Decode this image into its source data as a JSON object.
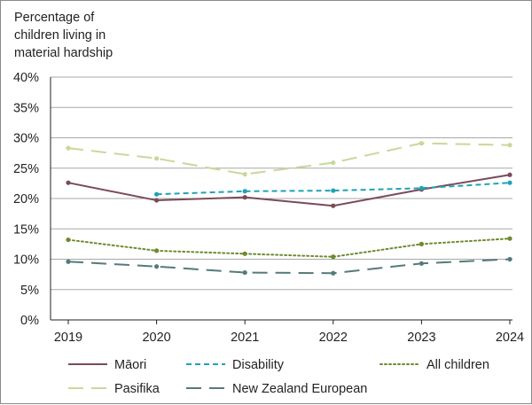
{
  "chart_data": {
    "type": "line",
    "ylabel": [
      "Percentage of",
      "children living in",
      "material hardship"
    ],
    "title": "",
    "xlabel": "",
    "categories": [
      "2019",
      "2020",
      "2021",
      "2022",
      "2023",
      "2024"
    ],
    "ylim": [
      0,
      40
    ],
    "yticks": [
      "0%",
      "5%",
      "10%",
      "15%",
      "20%",
      "25%",
      "30%",
      "35%",
      "40%"
    ],
    "grid": "horizontal",
    "legend_position": "bottom",
    "series": [
      {
        "name": "Māori",
        "color": "#7b4a5a",
        "dash": "solid",
        "values": [
          22.6,
          19.7,
          20.2,
          18.8,
          21.5,
          23.9
        ]
      },
      {
        "name": "Disability",
        "color": "#1fa2b8",
        "dash": "dashed",
        "values": [
          null,
          20.7,
          21.2,
          21.3,
          21.7,
          22.6
        ]
      },
      {
        "name": "All children",
        "color": "#6e8a2e",
        "dash": "dotted",
        "values": [
          13.2,
          11.4,
          10.9,
          10.4,
          12.5,
          13.4
        ]
      },
      {
        "name": "Pasifika",
        "color": "#c8d89a",
        "dash": "longdash",
        "values": [
          28.3,
          26.6,
          24.0,
          25.9,
          29.1,
          28.8
        ]
      },
      {
        "name": "New Zealand European",
        "color": "#557a7a",
        "dash": "longdash",
        "values": [
          9.6,
          8.8,
          7.8,
          7.7,
          9.3,
          10.0
        ]
      }
    ]
  }
}
